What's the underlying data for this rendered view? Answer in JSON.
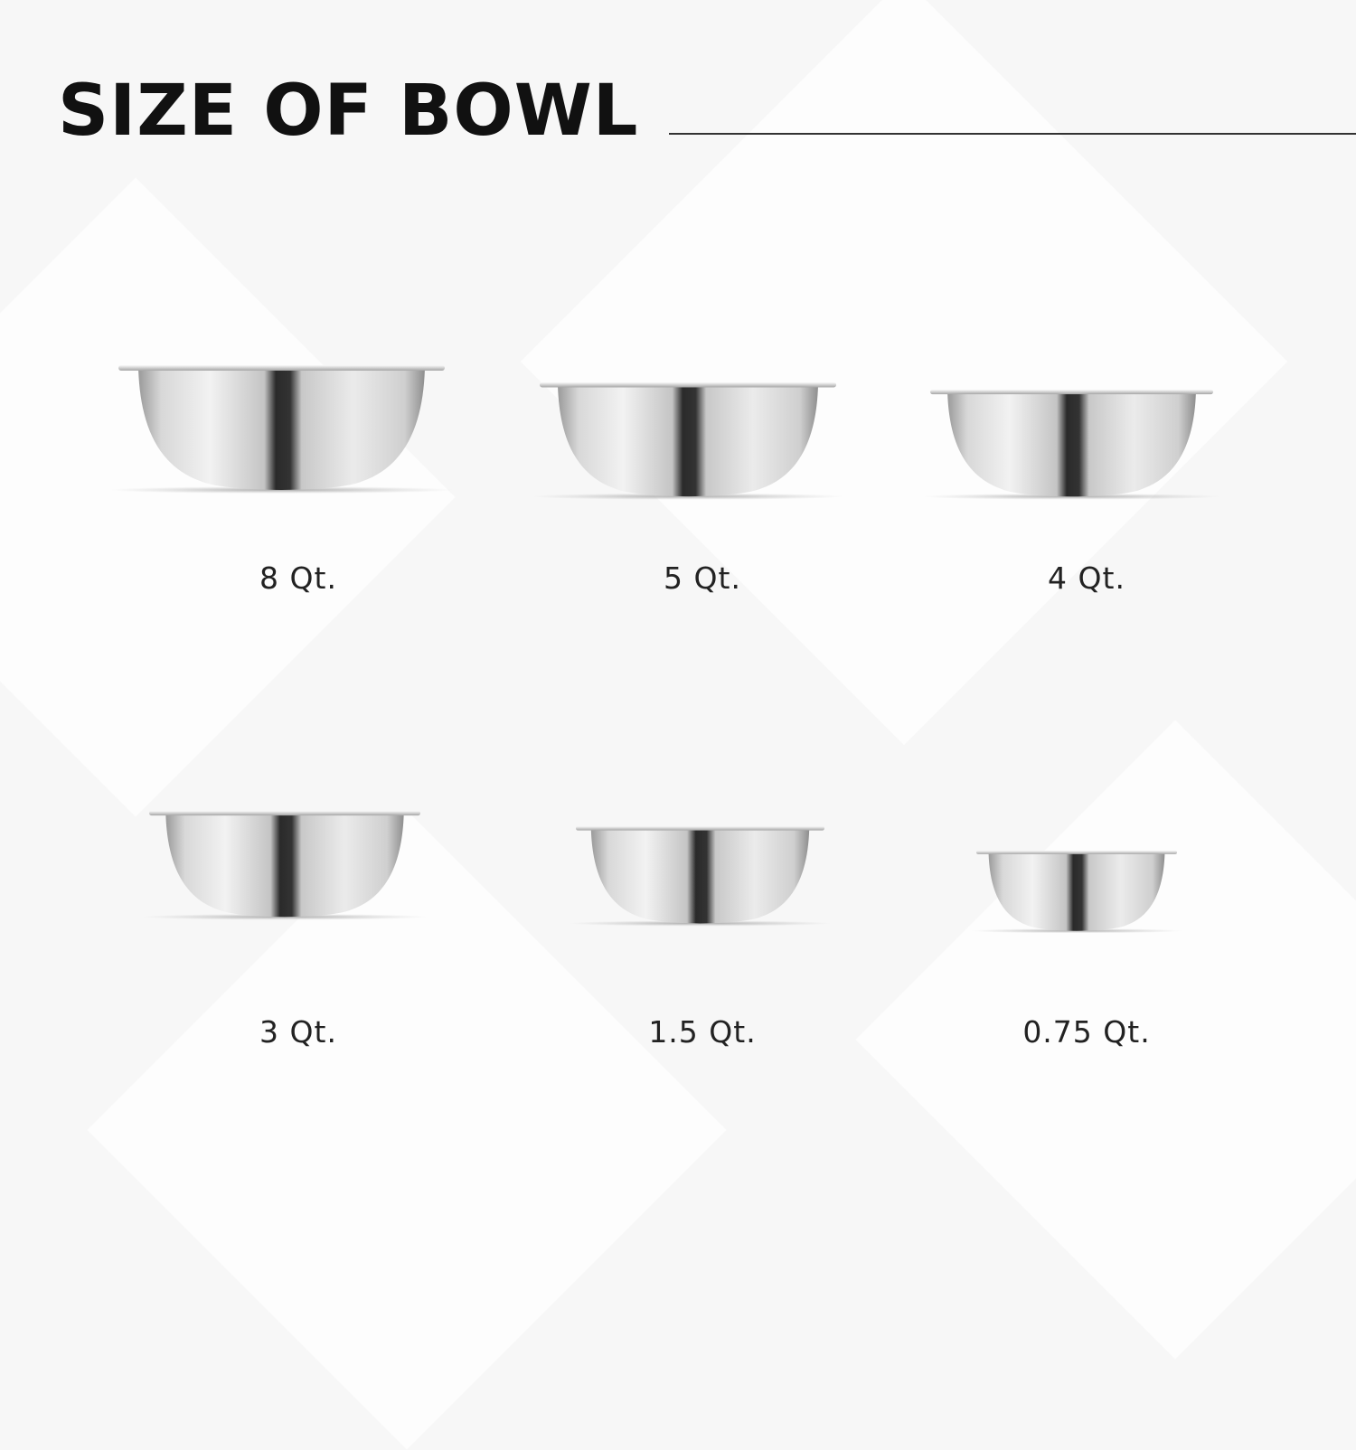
{
  "title": "SIZE OF BOWL",
  "bowls": [
    {
      "size": "8 Qt."
    },
    {
      "size": "5 Qt."
    },
    {
      "size": "4 Qt."
    },
    {
      "size": "3 Qt."
    },
    {
      "size": "1.5 Qt."
    },
    {
      "size": "0.75 Qt."
    }
  ],
  "colors": {
    "text": "#111111",
    "background": "#f7f7f7",
    "steel_light": "#e8e8e8",
    "steel_dark": "#2a2a2a"
  }
}
